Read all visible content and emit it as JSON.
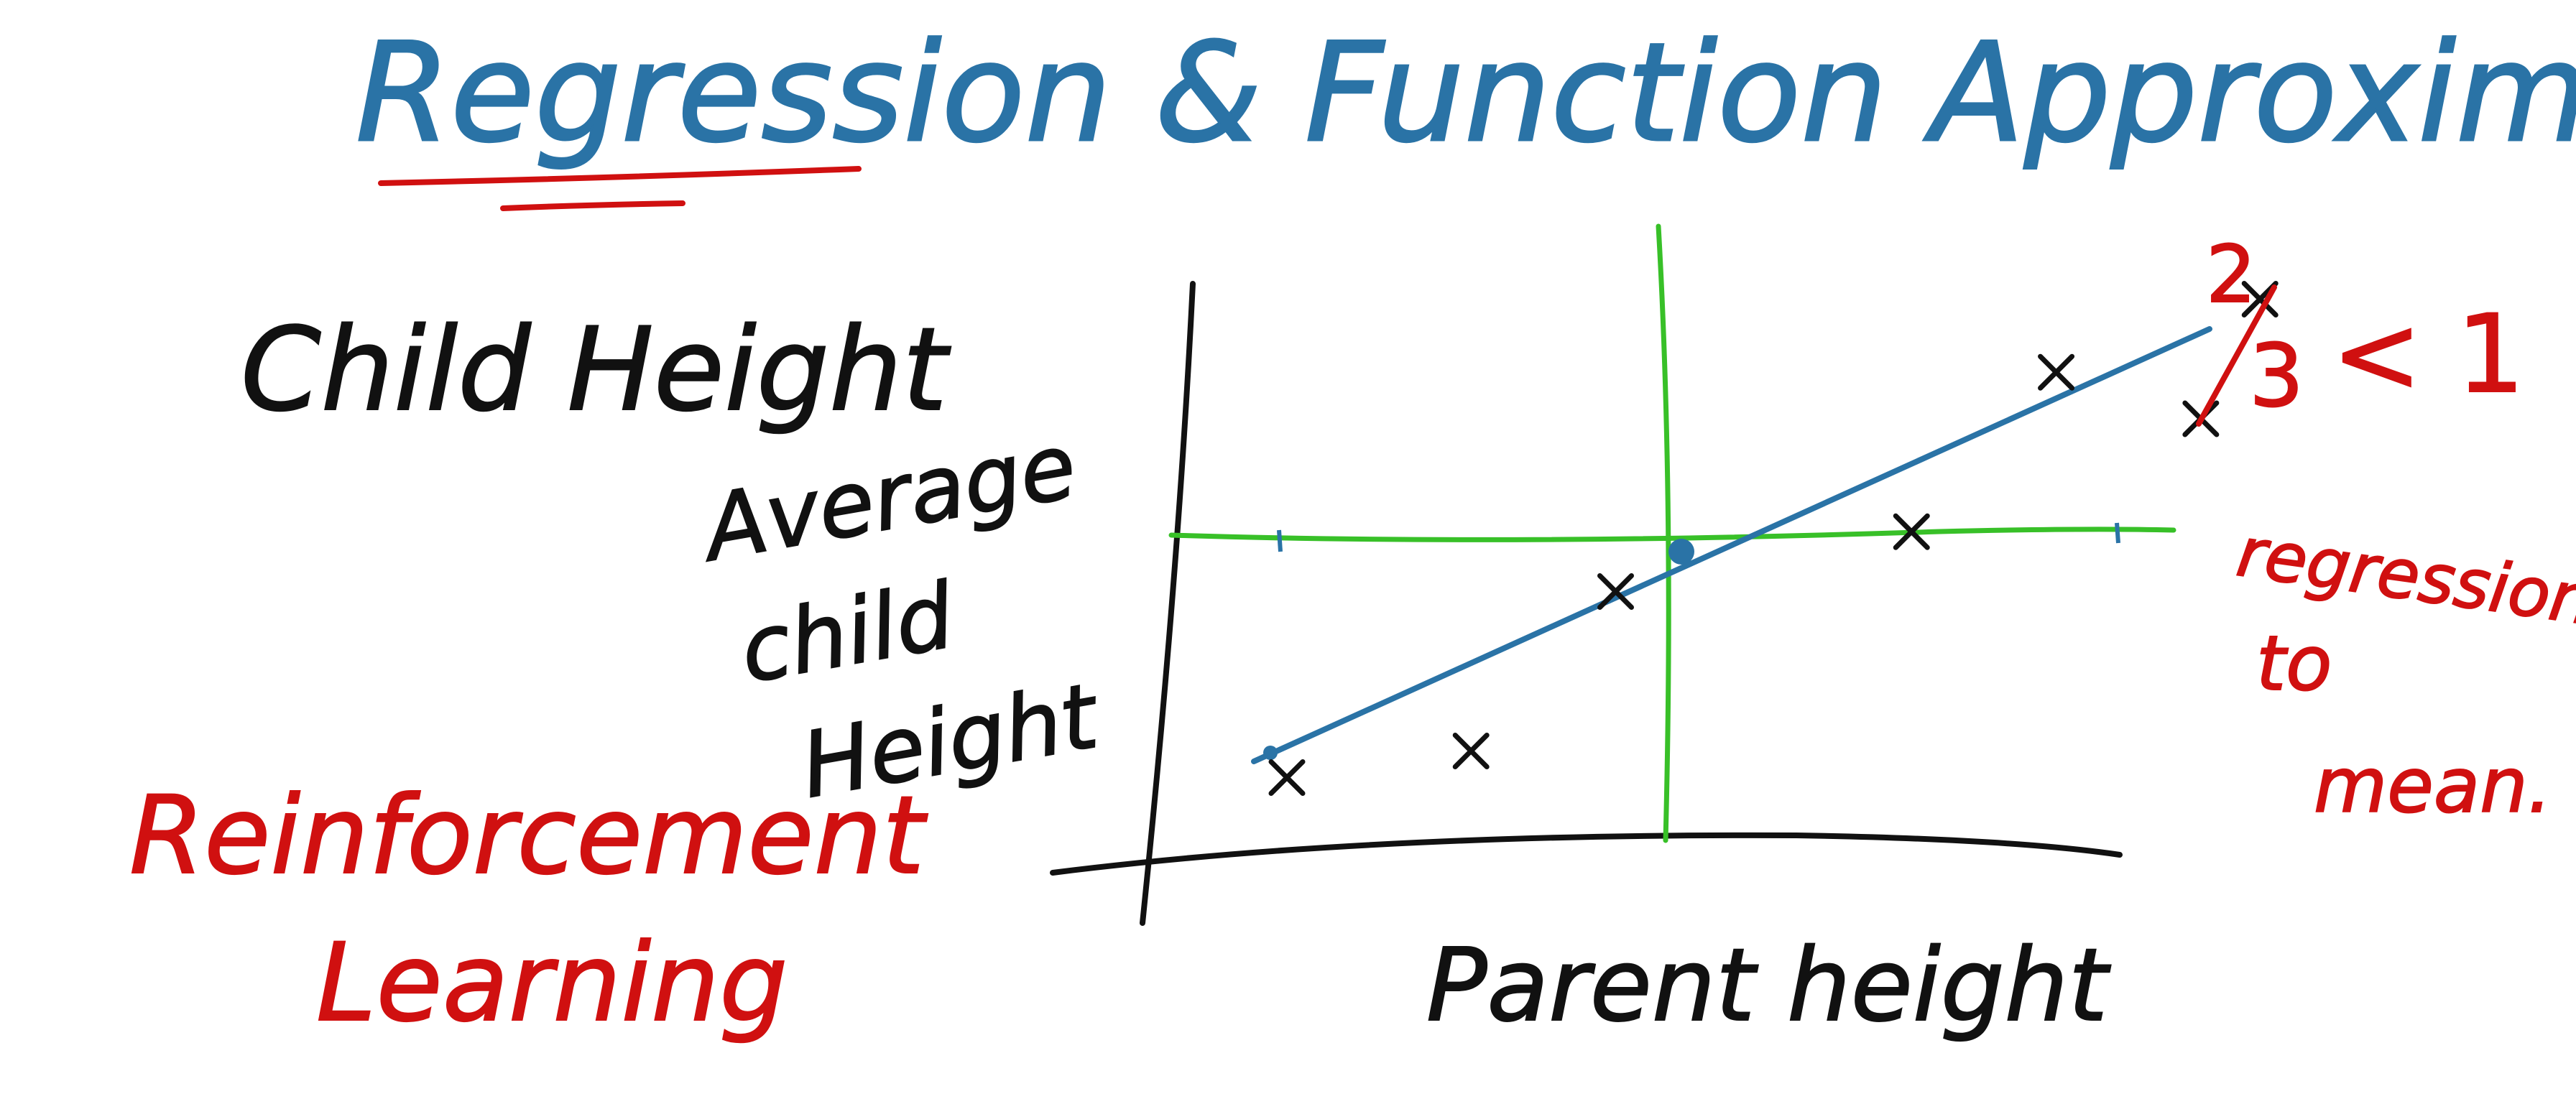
{
  "title": "Regression & Function Approximation",
  "left_notes": {
    "heading": "Child Height",
    "footer_line1": "Reinforcement",
    "footer_line2": "Learning"
  },
  "graph": {
    "ylabel_line1": "Average",
    "ylabel_line2": "child",
    "ylabel_line3": "Height",
    "xlabel": "Parent height",
    "slope_note": {
      "numerator": "2",
      "denominator": "3",
      "relation": "< 1"
    },
    "side_note_line1": "regression",
    "side_note_line2": "to",
    "side_note_line3": "mean."
  },
  "data_points": [
    {
      "x": -3,
      "y": -1.7
    },
    {
      "x": -1.6,
      "y": -1.5
    },
    {
      "x": -0.5,
      "y": -0.3
    },
    {
      "x": 1.75,
      "y": 0.15
    },
    {
      "x": 2.85,
      "y": 1.35
    },
    {
      "x": 3.95,
      "y": 1.0
    },
    {
      "x": 4.4,
      "y": 1.9
    }
  ],
  "colors": {
    "title": "#2a73a6",
    "ink": "#111111",
    "red": "#d01010",
    "axis_green": "#38c028",
    "fit_line": "#2a73a6"
  }
}
